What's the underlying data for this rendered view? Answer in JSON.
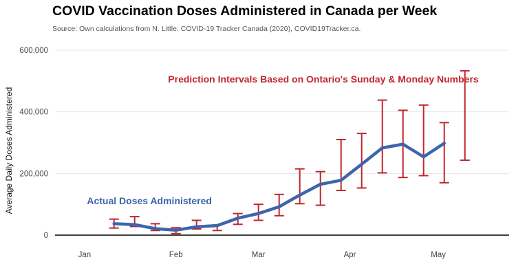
{
  "header": {
    "title": "COVID Vaccination Doses Administered in Canada per Week",
    "subtitle": "Source: Own calculations from N. Little. COVID-19 Tracker Canada (2020), COVID19Tracker.ca."
  },
  "colors": {
    "actual": "#3e64ab",
    "prediction": "#c0272d",
    "grid": "#e6e6e6",
    "baseline": "#000000"
  },
  "chart_data": {
    "type": "line",
    "title": "COVID Vaccination Doses Administered in Canada per Week",
    "subtitle": "Source: Own calculations from N. Little. COVID-19 Tracker Canada (2020), COVID19Tracker.ca.",
    "xlabel": "",
    "ylabel": "Average Daily Doses Administered",
    "ylim": [
      0,
      600000
    ],
    "xlim": [
      "2020-12-22",
      "2021-05-25"
    ],
    "yticks": [
      0,
      200000,
      400000,
      600000
    ],
    "ytick_labels": [
      "0",
      "200,000",
      "400,000",
      "600,000"
    ],
    "xticks": [
      "2021-01-01",
      "2021-02-01",
      "2021-03-01",
      "2021-04-01",
      "2021-05-01"
    ],
    "xtick_labels": [
      "Jan",
      "Feb",
      "Mar",
      "Apr",
      "May"
    ],
    "grid": true,
    "annotations": [
      {
        "text": "Prediction Intervals Based on Ontario's Sunday & Monday Numbers",
        "series": "prediction",
        "x": "2021-03-23",
        "y": 495000
      },
      {
        "text": "Actual Doses Administered",
        "series": "actual",
        "x": "2021-01-23",
        "y": 100000
      }
    ],
    "series": [
      {
        "name": "",
        "key": "actual",
        "type": "line",
        "x": [
          "2021-01-11",
          "2021-01-18",
          "2021-01-25",
          "2021-02-01",
          "2021-02-08",
          "2021-02-15",
          "2021-02-22",
          "2021-03-01",
          "2021-03-08",
          "2021-03-15",
          "2021-03-22",
          "2021-03-29",
          "2021-04-05",
          "2021-04-12",
          "2021-04-19",
          "2021-04-26",
          "2021-05-03"
        ],
        "values": [
          37000,
          34000,
          21000,
          16000,
          27000,
          31000,
          55000,
          70000,
          92000,
          130000,
          165000,
          178000,
          230000,
          283000,
          295000,
          254000,
          298000
        ]
      },
      {
        "name": "",
        "key": "prediction",
        "type": "errorbar",
        "x": [
          "2021-01-11",
          "2021-01-18",
          "2021-01-25",
          "2021-02-01",
          "2021-02-08",
          "2021-02-15",
          "2021-02-22",
          "2021-03-01",
          "2021-03-08",
          "2021-03-15",
          "2021-03-22",
          "2021-03-29",
          "2021-04-05",
          "2021-04-12",
          "2021-04-19",
          "2021-04-26",
          "2021-05-03",
          "2021-05-10"
        ],
        "low": [
          23000,
          28000,
          15000,
          5000,
          20000,
          15000,
          35000,
          48000,
          63000,
          102000,
          97000,
          145000,
          153000,
          202000,
          187000,
          193000,
          170000,
          243000
        ],
        "high": [
          52000,
          60000,
          37000,
          24000,
          48000,
          33000,
          70000,
          100000,
          132000,
          215000,
          206000,
          310000,
          330000,
          438000,
          405000,
          422000,
          365000,
          533000
        ]
      }
    ]
  }
}
